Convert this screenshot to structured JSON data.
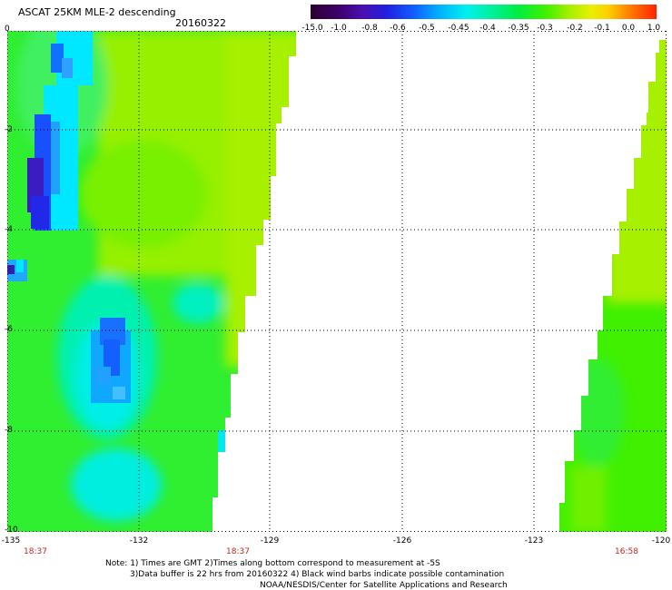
{
  "header": {
    "title": "ASCAT 25KM MLE-2 descending",
    "date": "20160322"
  },
  "colorbar": {
    "labels": [
      "-15.0",
      "-1.0",
      "-0.8",
      "-0.6",
      "-0.5",
      "-0.45",
      "-0.4",
      "-0.35",
      "-0.3",
      "-0.2",
      "-0.1",
      "0.0",
      "1.0"
    ]
  },
  "axes": {
    "y_ticks": [
      "0",
      "-2",
      "-4",
      "-6",
      "-8",
      "-10"
    ],
    "x_ticks": [
      "-135",
      "-132",
      "-129",
      "-126",
      "-123",
      "-120"
    ],
    "time_labels": [
      "18:37",
      "18:37",
      "16:58"
    ]
  },
  "notes": {
    "line1": "Note: 1) Times are GMT 2)Times along bottom correspond to measurement at -5S",
    "line2": "3)Data buffer is 22 hrs from 20160322 4) Black wind barbs indicate possible contamination",
    "line3": "NOAA/NESDIS/Center for Satellite Applications and Research"
  },
  "colors": {
    "background": "#ffffff",
    "swath_green": "#30ee30",
    "swath_yellowgreen": "#a6f000",
    "cyan": "#00f0f0",
    "blue": "#2040ff",
    "time_label": "#c0281c"
  }
}
